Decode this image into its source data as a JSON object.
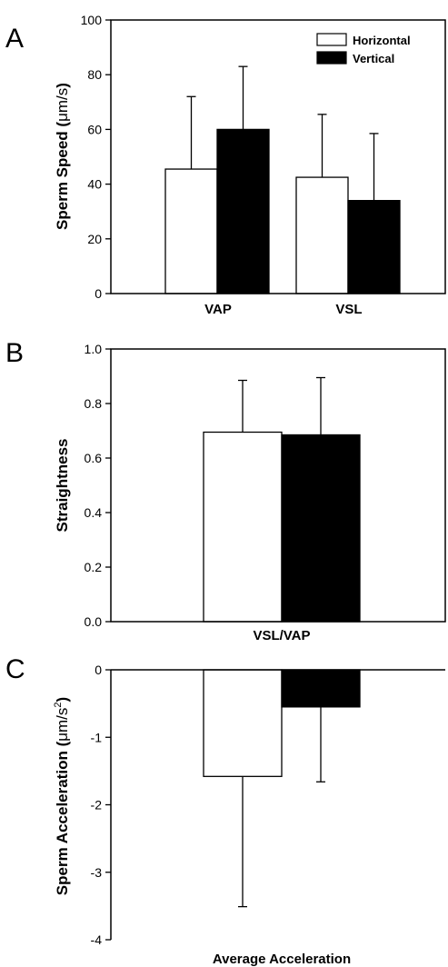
{
  "chart_data": [
    {
      "panel": "A",
      "type": "bar",
      "ylabel_pre": "Sperm Speed (",
      "ylabel_unit": "μm/s",
      "ylabel_post": ")",
      "ylim": [
        0,
        100
      ],
      "yticks": [
        "0",
        "20",
        "40",
        "60",
        "80",
        "100"
      ],
      "categories": [
        "VAP",
        "VSL"
      ],
      "series": [
        {
          "name": "Horizontal",
          "values": [
            45.5,
            42.5
          ],
          "errors": [
            26.5,
            23.0
          ],
          "color": "#ffffff"
        },
        {
          "name": "Vertical",
          "values": [
            60.0,
            34.0
          ],
          "errors": [
            23.0,
            24.5
          ],
          "color": "#000000"
        }
      ],
      "legend": "top-right"
    },
    {
      "panel": "B",
      "type": "bar",
      "ylabel": "Straightness",
      "ylim": [
        0,
        1
      ],
      "yticks": [
        "0.0",
        "0.2",
        "0.4",
        "0.6",
        "0.8",
        "1.0"
      ],
      "categories": [
        "VSL/VAP"
      ],
      "series": [
        {
          "name": "Horizontal",
          "values": [
            0.695
          ],
          "errors": [
            0.19
          ],
          "color": "#ffffff"
        },
        {
          "name": "Vertical",
          "values": [
            0.685
          ],
          "errors": [
            0.21
          ],
          "color": "#000000"
        }
      ]
    },
    {
      "panel": "C",
      "type": "bar",
      "ylabel_pre": "Sperm Acceleration (",
      "ylabel_unit": "μm/s",
      "ylabel_sup": "2",
      "ylabel_post": ")",
      "ylim": [
        -4,
        0
      ],
      "yticks": [
        "0",
        "-1",
        "-2",
        "-3",
        "-4"
      ],
      "categories": [
        "Average Acceleration"
      ],
      "series": [
        {
          "name": "Horizontal",
          "values": [
            -1.58
          ],
          "errors": [
            1.93
          ],
          "color": "#ffffff"
        },
        {
          "name": "Vertical",
          "values": [
            -0.55
          ],
          "errors": [
            1.11
          ],
          "color": "#000000"
        }
      ]
    }
  ]
}
